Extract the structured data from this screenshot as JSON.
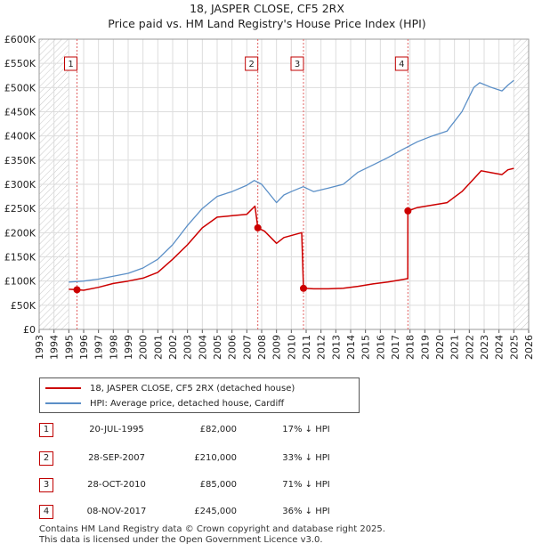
{
  "title": "18, JASPER CLOSE, CF5 2RX",
  "subtitle": "Price paid vs. HM Land Registry's House Price Index (HPI)",
  "chart_data": {
    "type": "line",
    "xlim": [
      1993,
      2026
    ],
    "ylim": [
      0,
      600000
    ],
    "y_ticks": [
      0,
      50000,
      100000,
      150000,
      200000,
      250000,
      300000,
      350000,
      400000,
      450000,
      500000,
      550000,
      600000
    ],
    "y_tick_labels": [
      "£0",
      "£50K",
      "£100K",
      "£150K",
      "£200K",
      "£250K",
      "£300K",
      "£350K",
      "£400K",
      "£450K",
      "£500K",
      "£550K",
      "£600K"
    ],
    "x_tick_labels": [
      "1993",
      "1994",
      "1995",
      "1996",
      "1997",
      "1998",
      "1999",
      "2000",
      "2001",
      "2002",
      "2003",
      "2004",
      "2005",
      "2006",
      "2007",
      "2008",
      "2009",
      "2010",
      "2011",
      "2012",
      "2013",
      "2014",
      "2015",
      "2016",
      "2017",
      "2018",
      "2019",
      "2020",
      "2021",
      "2022",
      "2023",
      "2024",
      "2025",
      "2026"
    ],
    "hatched_ranges": [
      [
        1993,
        1995.0
      ],
      [
        2025.0,
        2026
      ]
    ],
    "series": [
      {
        "name": "18, JASPER CLOSE, CF5 2RX (detached house)",
        "color": "#cc0000",
        "points": [
          [
            1995.0,
            83000
          ],
          [
            1995.55,
            82000
          ],
          [
            1996,
            81000
          ],
          [
            1997,
            87000
          ],
          [
            1998,
            95000
          ],
          [
            1999,
            100000
          ],
          [
            2000,
            106000
          ],
          [
            2001,
            118000
          ],
          [
            2002,
            145000
          ],
          [
            2003,
            175000
          ],
          [
            2004,
            210000
          ],
          [
            2005,
            232000
          ],
          [
            2006,
            235000
          ],
          [
            2007,
            238000
          ],
          [
            2007.55,
            255000
          ],
          [
            2007.74,
            210000
          ],
          [
            2008.2,
            203000
          ],
          [
            2009,
            178000
          ],
          [
            2009.5,
            190000
          ],
          [
            2010.7,
            200000
          ],
          [
            2010.82,
            85000
          ],
          [
            2011.5,
            84000
          ],
          [
            2012.5,
            84000
          ],
          [
            2013.5,
            85000
          ],
          [
            2014.5,
            89000
          ],
          [
            2015.5,
            94000
          ],
          [
            2016.5,
            98000
          ],
          [
            2017.5,
            103000
          ],
          [
            2017.85,
            105000
          ],
          [
            2017.86,
            245000
          ],
          [
            2018.5,
            252000
          ],
          [
            2019.5,
            257000
          ],
          [
            2020.5,
            262000
          ],
          [
            2021.5,
            285000
          ],
          [
            2022.5,
            318000
          ],
          [
            2022.8,
            328000
          ],
          [
            2023.5,
            324000
          ],
          [
            2024.2,
            320000
          ],
          [
            2024.6,
            330000
          ],
          [
            2025.0,
            333000
          ]
        ]
      },
      {
        "name": "HPI: Average price, detached house, Cardiff",
        "color": "#5b8fc7",
        "points": [
          [
            1995.0,
            98000
          ],
          [
            1996,
            100000
          ],
          [
            1997,
            104000
          ],
          [
            1998,
            110000
          ],
          [
            1999,
            116000
          ],
          [
            2000,
            127000
          ],
          [
            2001,
            145000
          ],
          [
            2002,
            175000
          ],
          [
            2003,
            215000
          ],
          [
            2004,
            250000
          ],
          [
            2005,
            275000
          ],
          [
            2006,
            285000
          ],
          [
            2007,
            298000
          ],
          [
            2007.5,
            308000
          ],
          [
            2008,
            300000
          ],
          [
            2009,
            262000
          ],
          [
            2009.5,
            278000
          ],
          [
            2010,
            285000
          ],
          [
            2010.8,
            295000
          ],
          [
            2011.5,
            285000
          ],
          [
            2012.5,
            292000
          ],
          [
            2013.5,
            300000
          ],
          [
            2014.5,
            325000
          ],
          [
            2015.5,
            340000
          ],
          [
            2016.5,
            355000
          ],
          [
            2017.5,
            372000
          ],
          [
            2018.5,
            388000
          ],
          [
            2019.5,
            400000
          ],
          [
            2020.5,
            410000
          ],
          [
            2021.5,
            450000
          ],
          [
            2022.3,
            500000
          ],
          [
            2022.7,
            510000
          ],
          [
            2023.5,
            500000
          ],
          [
            2024.2,
            493000
          ],
          [
            2024.6,
            505000
          ],
          [
            2025.0,
            515000
          ]
        ]
      }
    ],
    "sales": [
      {
        "num": "1",
        "date": "20-JUL-1995",
        "price": "£82,000",
        "hpi": "17% ↓ HPI",
        "x": 1995.55,
        "y": 82000
      },
      {
        "num": "2",
        "date": "28-SEP-2007",
        "price": "£210,000",
        "hpi": "33% ↓ HPI",
        "x": 2007.74,
        "y": 210000
      },
      {
        "num": "3",
        "date": "28-OCT-2010",
        "price": "£85,000",
        "hpi": "71% ↓ HPI",
        "x": 2010.82,
        "y": 85000
      },
      {
        "num": "4",
        "date": "08-NOV-2017",
        "price": "£245,000",
        "hpi": "36% ↓ HPI",
        "x": 2017.86,
        "y": 245000
      }
    ]
  },
  "legend": {
    "property_label": "18, JASPER CLOSE, CF5 2RX (detached house)",
    "hpi_label": "HPI: Average price, detached house, Cardiff"
  },
  "footer": {
    "line1": "Contains HM Land Registry data © Crown copyright and database right 2025.",
    "line2": "This data is licensed under the Open Government Licence v3.0."
  }
}
